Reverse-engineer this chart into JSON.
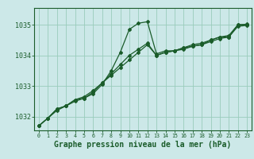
{
  "bg_color": "#cce8e8",
  "grid_color": "#99ccbb",
  "line_color": "#1a5c2a",
  "marker_color": "#1a5c2a",
  "xlabel": "Graphe pression niveau de la mer (hPa)",
  "xlabel_fontsize": 7.0,
  "ylabel_ticks": [
    1032,
    1033,
    1034,
    1035
  ],
  "xlim": [
    -0.5,
    23.5
  ],
  "ylim": [
    1031.55,
    1035.55
  ],
  "xtick_labels": [
    "0",
    "1",
    "2",
    "3",
    "4",
    "5",
    "6",
    "7",
    "8",
    "9",
    "10",
    "11",
    "12",
    "13",
    "14",
    "15",
    "16",
    "17",
    "18",
    "19",
    "20",
    "21",
    "22",
    "23"
  ],
  "series1_x": [
    0,
    1,
    2,
    3,
    4,
    5,
    6,
    7,
    8,
    9,
    10,
    11,
    12,
    13,
    14,
    15,
    16,
    17,
    18,
    19,
    20,
    21,
    22,
    23
  ],
  "series1_y": [
    1031.7,
    1031.95,
    1032.2,
    1032.35,
    1032.5,
    1032.6,
    1032.75,
    1033.05,
    1033.5,
    1034.1,
    1034.85,
    1035.05,
    1035.1,
    1034.05,
    1034.15,
    1034.15,
    1034.25,
    1034.3,
    1034.35,
    1034.5,
    1034.6,
    1034.6,
    1035.0,
    1035.0
  ],
  "series2_x": [
    0,
    1,
    2,
    3,
    4,
    5,
    6,
    7,
    8,
    9,
    10,
    11,
    12,
    13,
    14,
    15,
    16,
    17,
    18,
    19,
    20,
    21,
    22,
    23
  ],
  "series2_y": [
    1031.7,
    1031.95,
    1032.25,
    1032.35,
    1032.55,
    1032.6,
    1032.8,
    1033.1,
    1033.35,
    1033.6,
    1033.85,
    1034.1,
    1034.35,
    1034.0,
    1034.1,
    1034.15,
    1034.2,
    1034.3,
    1034.35,
    1034.45,
    1034.55,
    1034.6,
    1034.95,
    1034.98
  ],
  "series3_x": [
    0,
    1,
    2,
    3,
    4,
    5,
    6,
    7,
    8,
    9,
    10,
    11,
    12,
    13,
    14,
    15,
    16,
    17,
    18,
    19,
    20,
    21,
    22,
    23
  ],
  "series3_y": [
    1031.7,
    1031.95,
    1032.25,
    1032.35,
    1032.55,
    1032.65,
    1032.85,
    1033.1,
    1033.4,
    1033.7,
    1034.0,
    1034.2,
    1034.4,
    1034.0,
    1034.1,
    1034.15,
    1034.25,
    1034.35,
    1034.4,
    1034.5,
    1034.6,
    1034.65,
    1035.0,
    1035.02
  ]
}
